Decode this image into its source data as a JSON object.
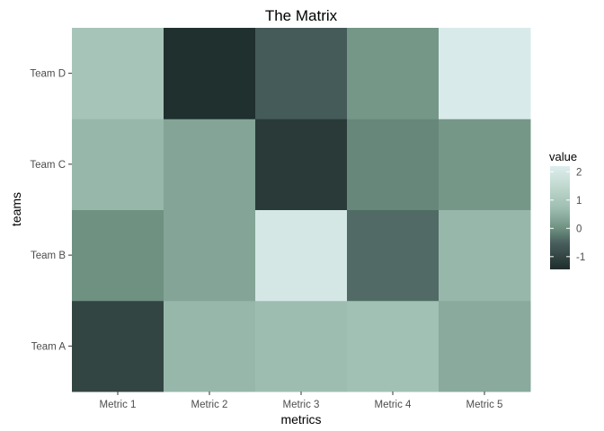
{
  "chart_data": {
    "type": "heatmap",
    "title": "The Matrix",
    "xlabel": "metrics",
    "ylabel": "teams",
    "x_categories": [
      "Metric 1",
      "Metric 2",
      "Metric 3",
      "Metric 4",
      "Metric 5"
    ],
    "y_categories": [
      "Team A",
      "Team B",
      "Team C",
      "Team D"
    ],
    "values": [
      [
        -1.0,
        0.6,
        0.7,
        0.8,
        0.4
      ],
      [
        0.0,
        0.3,
        2.0,
        -0.4,
        0.6
      ],
      [
        0.6,
        0.3,
        -1.2,
        -0.1,
        0.1
      ],
      [
        0.9,
        -1.4,
        -0.6,
        0.1,
        2.1
      ]
    ],
    "legend": {
      "title": "value",
      "position": "right",
      "ticks": [
        2,
        1,
        0,
        -1
      ],
      "tick_labels": [
        "2",
        "1",
        "0",
        "-1"
      ],
      "range": [
        -1.45,
        2.2
      ]
    },
    "color_stops": [
      {
        "value": -1.45,
        "color": "#1e2d2b"
      },
      {
        "value": -0.5,
        "color": "#4a605e"
      },
      {
        "value": 0.0,
        "color": "#6e9181"
      },
      {
        "value": 0.7,
        "color": "#9ebdb1"
      },
      {
        "value": 1.5,
        "color": "#c1d9cf"
      },
      {
        "value": 2.2,
        "color": "#ddedee"
      }
    ],
    "grid": false
  }
}
